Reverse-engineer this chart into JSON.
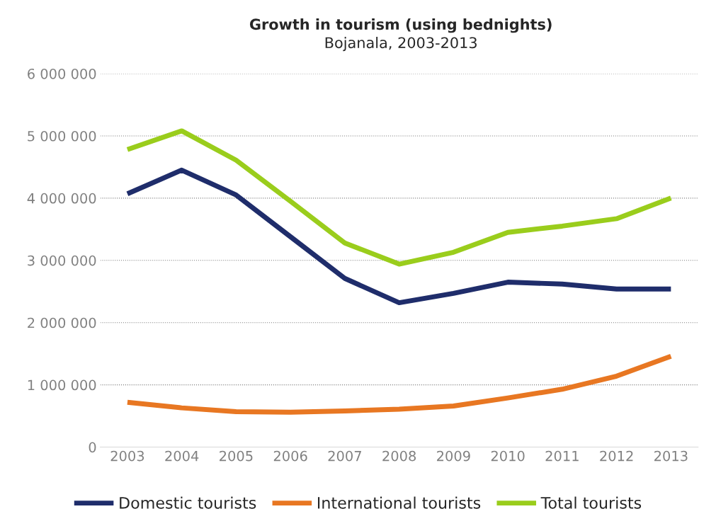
{
  "chart_data": {
    "type": "line",
    "title": "Growth in tourism (using bednights)",
    "subtitle": "Bojanala, 2003-2013",
    "categories": [
      "2003",
      "2004",
      "2005",
      "2006",
      "2007",
      "2008",
      "2009",
      "2010",
      "2011",
      "2012",
      "2013"
    ],
    "series": [
      {
        "name": "Domestic tourists",
        "color": "#1f2d6b",
        "values": [
          4070000,
          4450000,
          4050000,
          3380000,
          2710000,
          2320000,
          2470000,
          2650000,
          2620000,
          2540000,
          2540000
        ]
      },
      {
        "name": "International tourists",
        "color": "#e87722",
        "values": [
          720000,
          630000,
          570000,
          560000,
          580000,
          610000,
          660000,
          790000,
          930000,
          1140000,
          1460000
        ]
      },
      {
        "name": "Total tourists",
        "color": "#9acd1c",
        "values": [
          4780000,
          5080000,
          4610000,
          3950000,
          3280000,
          2940000,
          3130000,
          3450000,
          3550000,
          3670000,
          4000000
        ]
      }
    ],
    "ylim": [
      0,
      6000000
    ],
    "yticks": [
      0,
      {
        "value": 1000000,
        "label": "1 000 000"
      },
      {
        "value": 2000000,
        "label": "2 000 000"
      },
      {
        "value": 3000000,
        "label": "3 000 000"
      },
      {
        "value": 4000000,
        "label": "4 000 000"
      },
      {
        "value": 5000000,
        "label": "5 000 000"
      },
      {
        "value": 6000000,
        "label": "6 000 000"
      }
    ],
    "grid": "y",
    "legend": "bottom",
    "marker": "none",
    "line_style": "solid"
  }
}
